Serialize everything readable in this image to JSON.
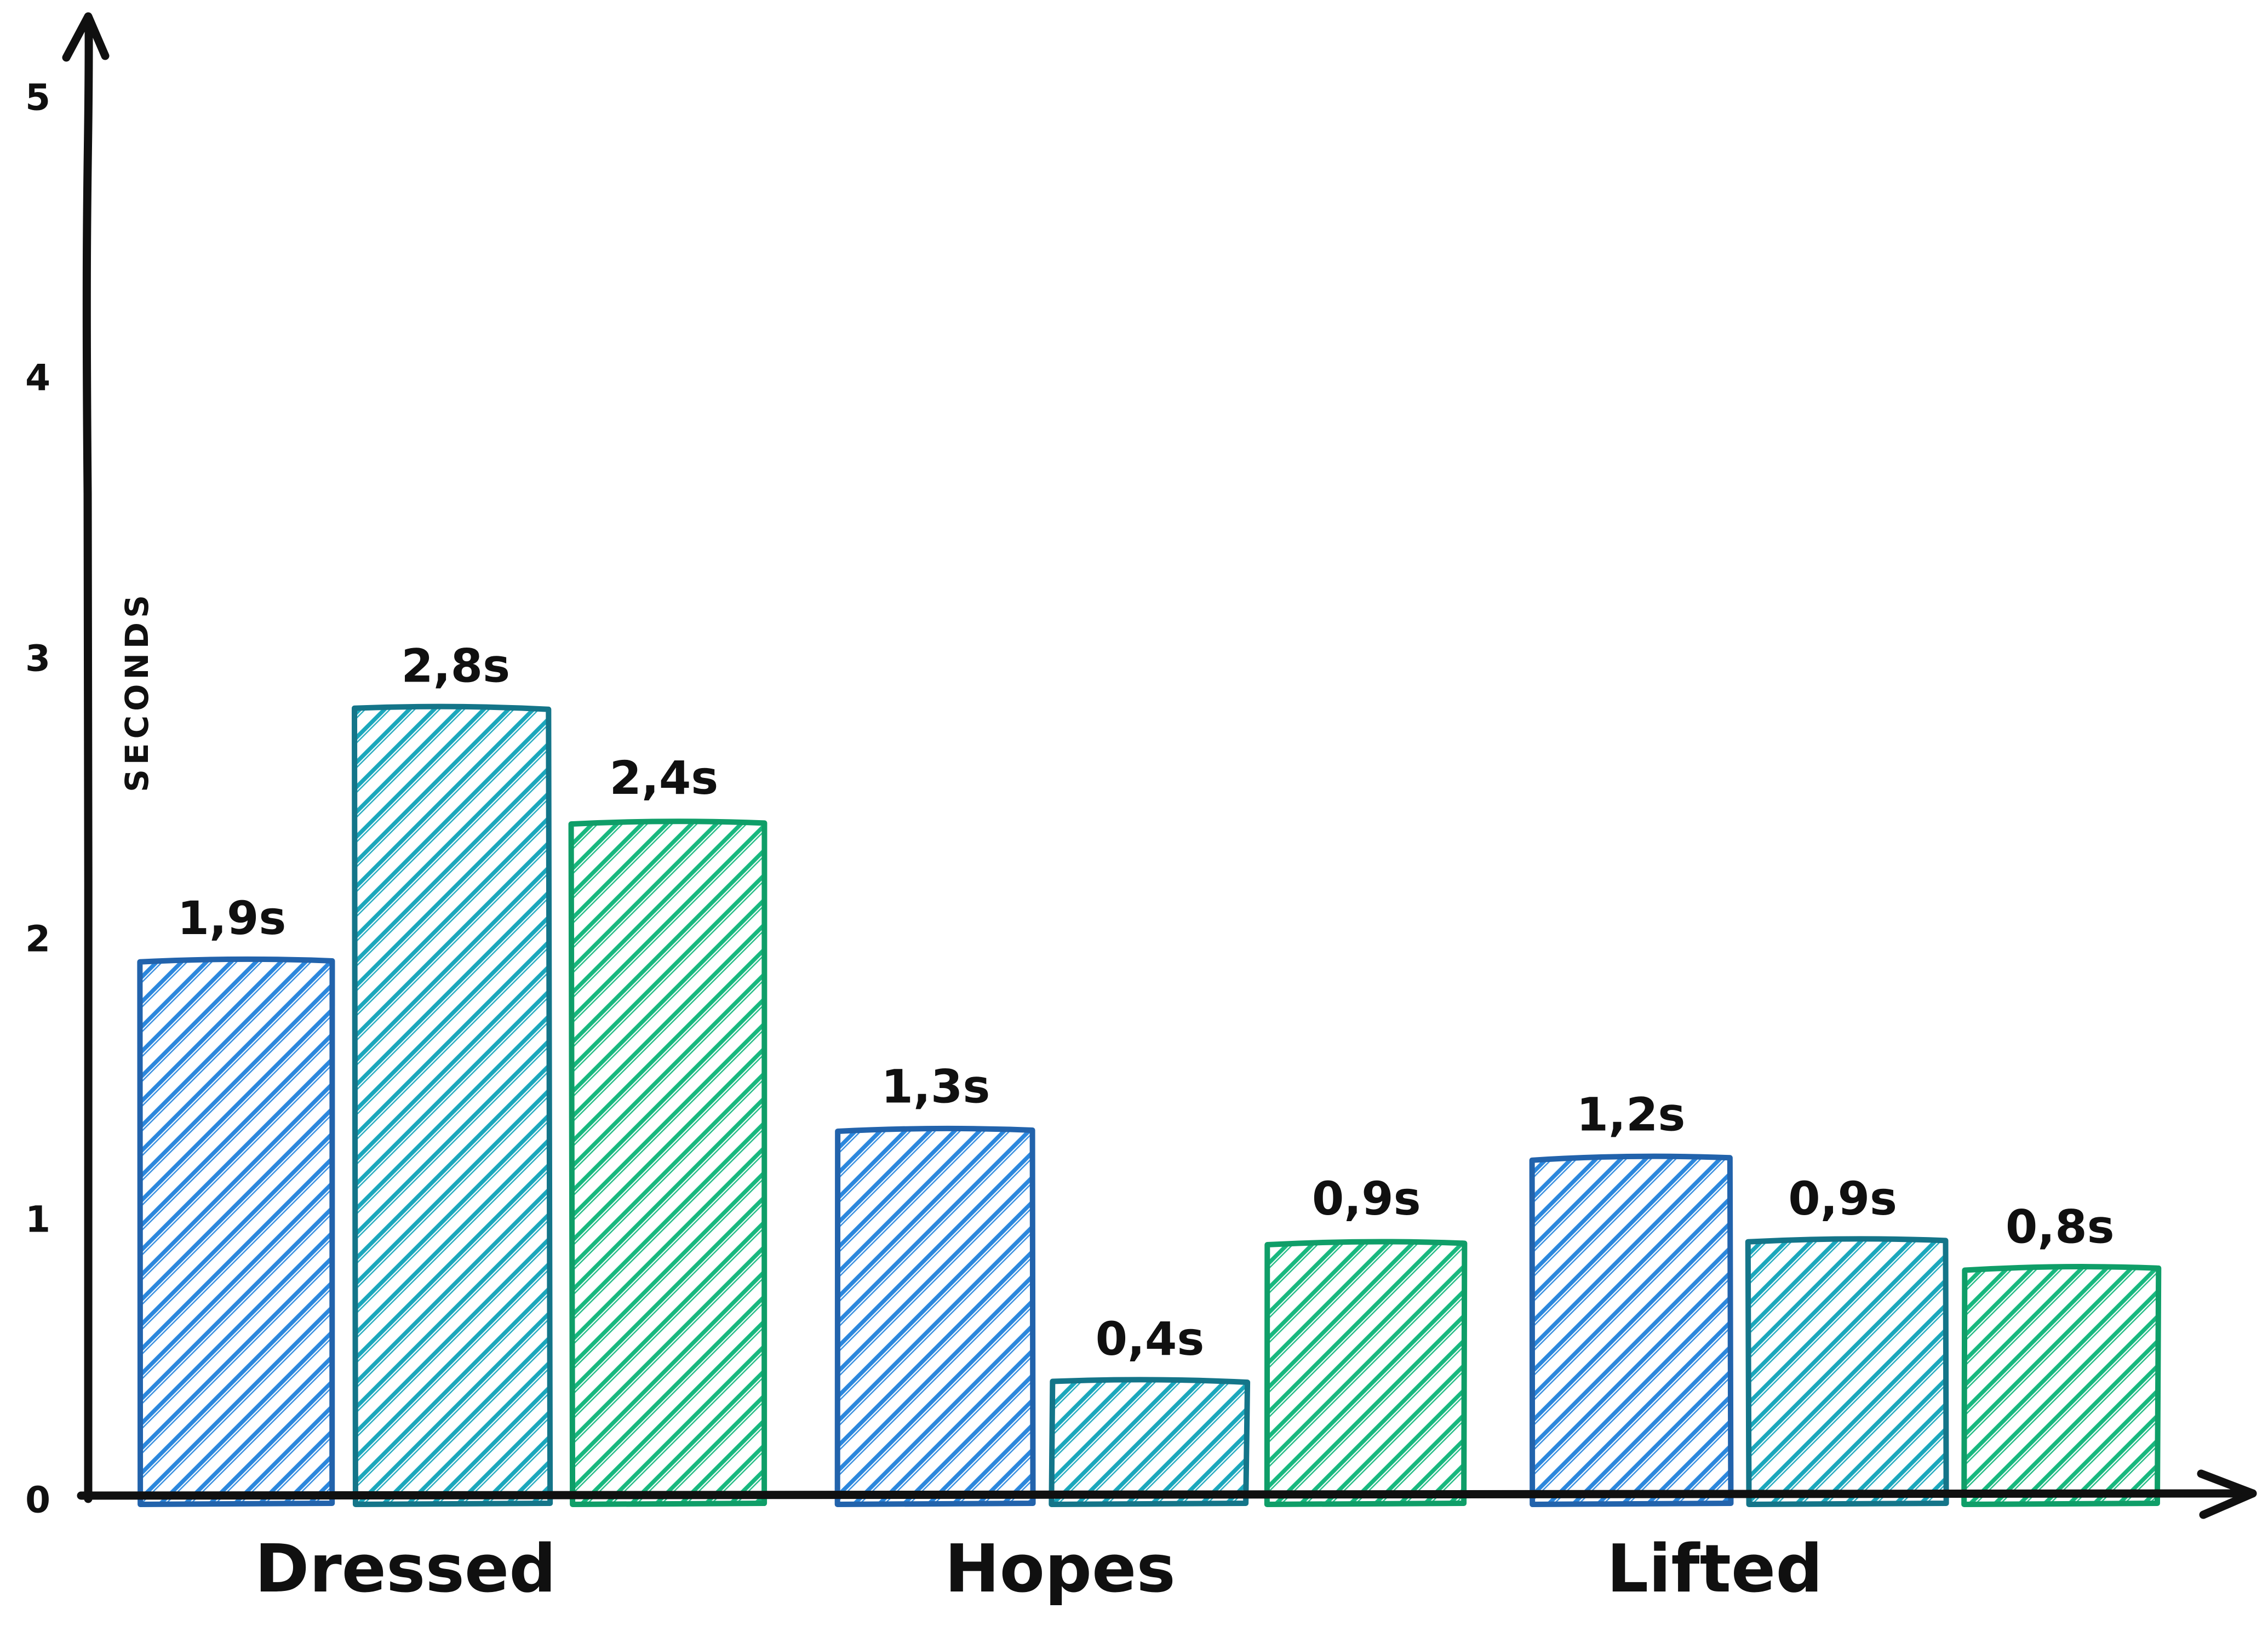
{
  "chart_data": {
    "type": "bar",
    "title": "",
    "ylabel": "SECONDS",
    "xlabel": "",
    "categories": [
      "Dressed",
      "Hopes",
      "Lifted"
    ],
    "series": [
      {
        "name": "blue",
        "values": [
          1.9,
          1.3,
          1.2
        ],
        "labels": [
          "1,9s",
          "1,3s",
          "1,2s"
        ],
        "hatch_color": "#2b87dd",
        "stroke_color": "#2263ac"
      },
      {
        "name": "teal",
        "values": [
          2.8,
          0.4,
          0.9
        ],
        "labels": [
          "2,8s",
          "0,4s",
          "0,9s"
        ],
        "hatch_color": "#1aa7bc",
        "stroke_color": "#147589"
      },
      {
        "name": "green",
        "values": [
          2.4,
          0.9,
          0.8
        ],
        "labels": [
          "2,4s",
          "0,9s",
          "0,8s"
        ],
        "hatch_color": "#17b87e",
        "stroke_color": "#0f9e68"
      }
    ],
    "yticks": [
      0,
      1,
      2,
      3,
      4,
      5
    ],
    "ylim": [
      0,
      5.3
    ],
    "axis_color": "#101010",
    "grid": false,
    "legend_position": "none"
  }
}
